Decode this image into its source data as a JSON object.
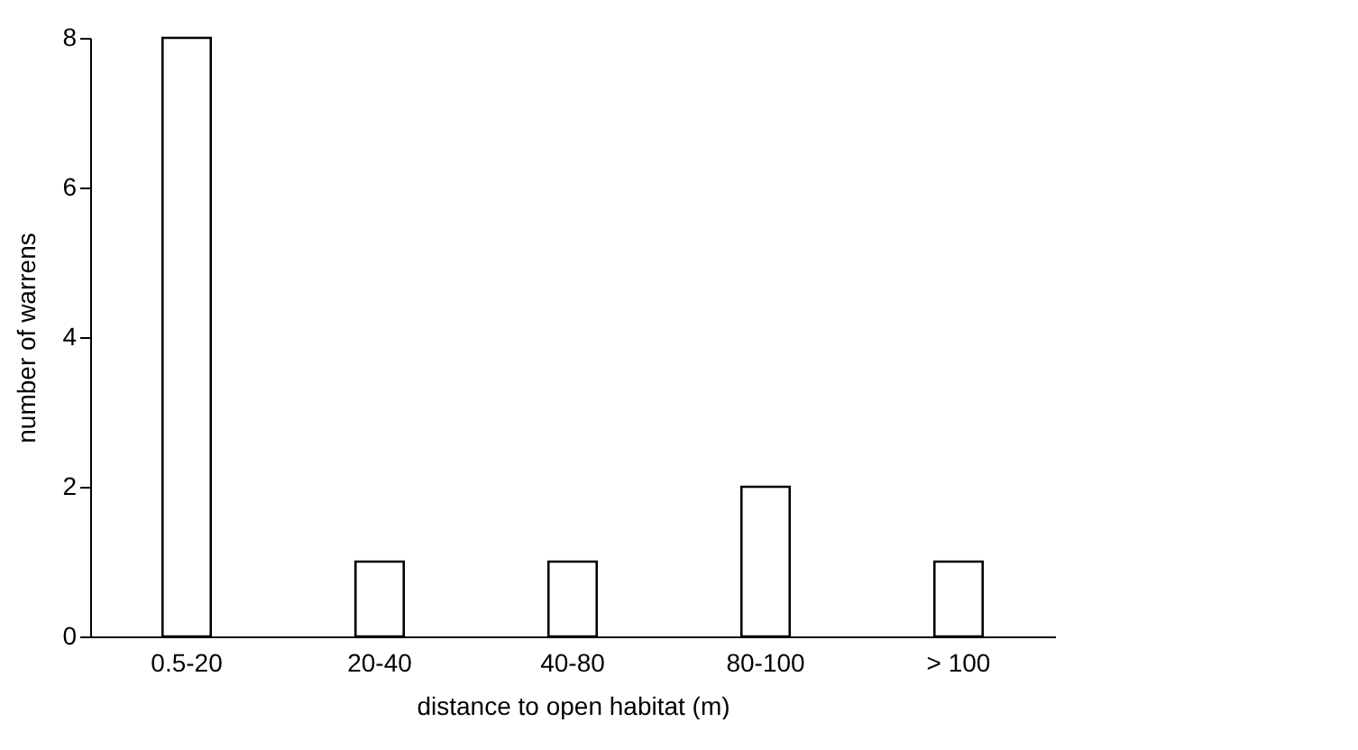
{
  "chart_data": {
    "type": "bar",
    "xlabel": "distance to open habitat (m)",
    "ylabel": "number of warrens",
    "categories": [
      "0.5-20",
      "20-40",
      "40-80",
      "80-100",
      "> 100"
    ],
    "values": [
      8,
      1,
      1,
      2,
      1
    ],
    "color": "#ffffff",
    "ylim": [
      0,
      8
    ],
    "yticks": [
      0,
      2,
      4,
      6,
      8
    ],
    "grid": false
  }
}
